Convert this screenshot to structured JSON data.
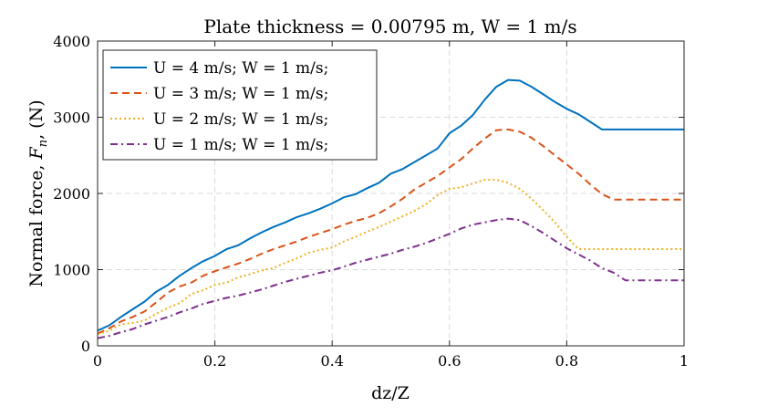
{
  "chart_data": {
    "type": "line",
    "title": "Plate thickness = 0.00795 m, W = 1 m/s",
    "xlabel": "dz/Z",
    "ylabel": "Normal force, F_n, (N)",
    "ylabel_parts": {
      "main": "Normal force, ",
      "symbol": "F",
      "sub": "n",
      "tail": ", (N)"
    },
    "xlim": [
      0,
      1
    ],
    "ylim": [
      0,
      4000
    ],
    "xticks": [
      0,
      0.2,
      0.4,
      0.6,
      0.8,
      1
    ],
    "xtick_labels": [
      "0",
      "0.2",
      "0.4",
      "0.6",
      "0.8",
      "1"
    ],
    "yticks": [
      0,
      1000,
      2000,
      3000,
      4000
    ],
    "ytick_labels": [
      "0",
      "1000",
      "2000",
      "3000",
      "4000"
    ],
    "grid": true,
    "legend_position": "top-left",
    "x": [
      0,
      0.02,
      0.04,
      0.06,
      0.08,
      0.1,
      0.12,
      0.14,
      0.16,
      0.18,
      0.2,
      0.22,
      0.24,
      0.26,
      0.28,
      0.3,
      0.32,
      0.34,
      0.36,
      0.38,
      0.4,
      0.42,
      0.44,
      0.46,
      0.48,
      0.5,
      0.52,
      0.54,
      0.56,
      0.58,
      0.6,
      0.62,
      0.64,
      0.66,
      0.68,
      0.7,
      0.72,
      0.74,
      0.76,
      0.78,
      0.8,
      0.82,
      0.84,
      0.86,
      0.88,
      0.9,
      0.92,
      0.94,
      0.96,
      0.98,
      1.0
    ],
    "series": [
      {
        "name": "U = 4 m/s; W = 1 m/s;",
        "color": "#0072BD",
        "style": "solid",
        "values": [
          200,
          270,
          380,
          480,
          580,
          710,
          800,
          920,
          1020,
          1110,
          1180,
          1270,
          1320,
          1410,
          1490,
          1560,
          1620,
          1690,
          1740,
          1800,
          1870,
          1950,
          1990,
          2070,
          2140,
          2260,
          2320,
          2410,
          2500,
          2590,
          2790,
          2890,
          3030,
          3230,
          3400,
          3490,
          3480,
          3400,
          3300,
          3200,
          3110,
          3040,
          2940,
          2840,
          2840,
          2840,
          2840,
          2840,
          2840,
          2840,
          2840
        ]
      },
      {
        "name": "U = 3 m/s; W = 1 m/s;",
        "color": "#D95319",
        "style": "dashed",
        "values": [
          160,
          230,
          320,
          380,
          450,
          570,
          700,
          780,
          830,
          920,
          980,
          1030,
          1080,
          1140,
          1210,
          1270,
          1320,
          1370,
          1430,
          1480,
          1530,
          1590,
          1640,
          1680,
          1740,
          1830,
          1930,
          2050,
          2140,
          2230,
          2340,
          2450,
          2590,
          2720,
          2830,
          2840,
          2810,
          2730,
          2620,
          2500,
          2380,
          2260,
          2120,
          1990,
          1920,
          1920,
          1920,
          1920,
          1920,
          1920,
          1920
        ]
      },
      {
        "name": "U = 2 m/s; W = 1 m/s;",
        "color": "#EDB120",
        "style": "dotted",
        "values": [
          150,
          200,
          280,
          300,
          330,
          420,
          500,
          560,
          680,
          730,
          800,
          830,
          900,
          940,
          990,
          1020,
          1090,
          1150,
          1220,
          1260,
          1290,
          1370,
          1430,
          1500,
          1560,
          1630,
          1700,
          1770,
          1860,
          1980,
          2060,
          2080,
          2130,
          2180,
          2180,
          2140,
          2060,
          1930,
          1780,
          1620,
          1430,
          1270,
          1270,
          1270,
          1270,
          1270,
          1270,
          1270,
          1270,
          1270,
          1270
        ]
      },
      {
        "name": "U = 1 m/s; W = 1 m/s;",
        "color": "#7E2F8E",
        "style": "dashdot",
        "values": [
          100,
          130,
          180,
          220,
          280,
          330,
          380,
          440,
          490,
          550,
          590,
          630,
          660,
          700,
          740,
          790,
          840,
          880,
          920,
          960,
          990,
          1040,
          1090,
          1130,
          1170,
          1210,
          1260,
          1300,
          1350,
          1410,
          1470,
          1540,
          1590,
          1620,
          1650,
          1670,
          1650,
          1570,
          1480,
          1380,
          1280,
          1200,
          1120,
          1020,
          960,
          860,
          860,
          860,
          860,
          860,
          860
        ]
      }
    ]
  }
}
